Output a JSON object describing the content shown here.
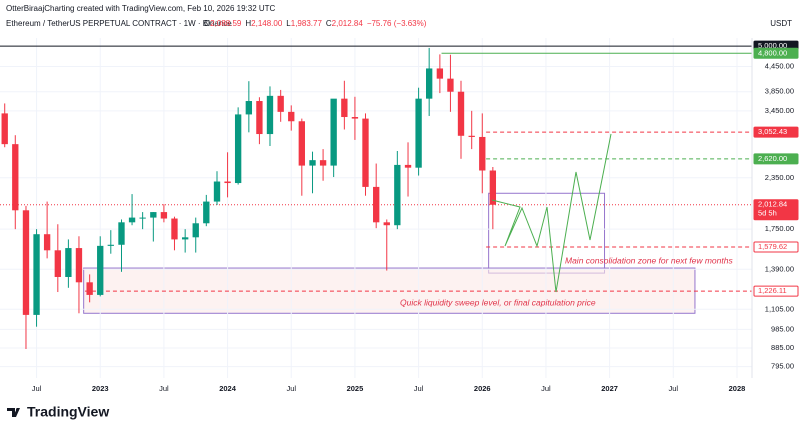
{
  "header": {
    "credit": "OtterBiraajCharting created with TradingView.com, Feb 10, 2026 19:32 UTC",
    "symbol": "Ethereum / TetherUS PERPETUAL CONTRACT · 1W · Binance",
    "ohlc": [
      {
        "key": "O",
        "value": "2,088.59"
      },
      {
        "key": "H",
        "value": "2,148.00"
      },
      {
        "key": "L",
        "value": "1,983.77"
      },
      {
        "key": "C",
        "value": "2,012.84"
      }
    ],
    "change": "−75.76 (−3.63%)",
    "currency": "USDT"
  },
  "footer": {
    "logo": "TradingView"
  },
  "chart_data": {
    "type": "candlestick",
    "log_scale": true,
    "up_color": "#089981",
    "down_color": "#f23645",
    "x": [
      2022.25,
      2022.333,
      2022.417,
      2022.5,
      2022.583,
      2022.667,
      2022.75,
      2022.833,
      2022.917,
      2023.0,
      2023.083,
      2023.167,
      2023.25,
      2023.333,
      2023.417,
      2023.5,
      2023.583,
      2023.667,
      2023.75,
      2023.833,
      2023.917,
      2024.0,
      2024.083,
      2024.167,
      2024.25,
      2024.333,
      2024.417,
      2024.5,
      2024.583,
      2024.667,
      2024.75,
      2024.833,
      2024.917,
      2025.0,
      2025.083,
      2025.167,
      2025.25,
      2025.333,
      2025.417,
      2025.5,
      2025.583,
      2025.667,
      2025.75,
      2025.833,
      2025.917,
      2026.0,
      2026.083
    ],
    "open": [
      3400,
      2850,
      1950,
      1070,
      1700,
      1550,
      1330,
      1570,
      1290,
      1200,
      1590,
      1600,
      1820,
      1870,
      1870,
      1930,
      1860,
      1650,
      1670,
      1810,
      2050,
      2300,
      2280,
      3380,
      3650,
      3020,
      3760,
      3430,
      3250,
      2520,
      2600,
      2520,
      3700,
      3330,
      3300,
      2230,
      1820,
      1790,
      2530,
      2490,
      3700,
      4400,
      4150,
      3850,
      2990,
      2970,
      2450
    ],
    "high": [
      3600,
      3000,
      2000,
      1750,
      2050,
      1800,
      1650,
      1680,
      1350,
      1680,
      1740,
      1850,
      2140,
      1930,
      1930,
      2020,
      1880,
      1750,
      1870,
      2130,
      2440,
      2720,
      3520,
      4090,
      3730,
      3970,
      3890,
      3560,
      3300,
      2730,
      2770,
      3680,
      4100,
      3740,
      3400,
      2550,
      1850,
      2740,
      2880,
      3940,
      4950,
      4770,
      4760,
      4100,
      3450,
      3400,
      2500
    ],
    "low": [
      2800,
      1750,
      880,
      1000,
      1480,
      1220,
      1250,
      1080,
      1150,
      1190,
      1520,
      1370,
      1790,
      1750,
      1630,
      1820,
      1550,
      1530,
      1530,
      1780,
      2010,
      2100,
      2260,
      3050,
      2850,
      2820,
      3240,
      3080,
      2120,
      2150,
      2310,
      2360,
      3100,
      2920,
      2120,
      1760,
      1380,
      1750,
      2110,
      2380,
      3350,
      3820,
      3430,
      2620,
      2770,
      2150,
      1750
    ],
    "close": [
      2850,
      1950,
      1070,
      1700,
      1550,
      1330,
      1570,
      1290,
      1200,
      1590,
      1600,
      1820,
      1870,
      1870,
      1930,
      1860,
      1650,
      1670,
      1810,
      2050,
      2300,
      2280,
      3380,
      3650,
      3020,
      3760,
      3430,
      3250,
      2520,
      2600,
      2520,
      3700,
      3330,
      3300,
      2230,
      1820,
      1790,
      2530,
      2490,
      3700,
      4400,
      4150,
      3850,
      2990,
      2970,
      2450,
      2012.84
    ],
    "xlim": [
      2022.213,
      2028.118
    ],
    "xticks": [
      {
        "value": 2022.5,
        "label": "Jul"
      },
      2023,
      {
        "value": 2023.5,
        "label": "Jul"
      },
      2024,
      {
        "value": 2024.5,
        "label": "Jul"
      },
      2025,
      {
        "value": 2025.5,
        "label": "Jul"
      },
      2026,
      {
        "value": 2026.5,
        "label": "Jul"
      },
      2027,
      {
        "value": 2027.5,
        "label": "Jul"
      },
      2028
    ],
    "ylim": [
      745,
      5240
    ],
    "yticks": [
      {
        "value": 4450,
        "label": "4,450.00"
      },
      {
        "value": 3850,
        "label": "3,850.00"
      },
      {
        "value": 3450,
        "label": "3,450.00"
      },
      {
        "value": 2350,
        "label": "2,350.00"
      },
      {
        "value": 1750,
        "label": "1,750.00"
      },
      {
        "value": 1390,
        "label": "1,390.00"
      },
      {
        "value": 1105,
        "label": "1,105.00"
      },
      {
        "value": 985,
        "label": "985.00"
      },
      {
        "value": 885,
        "label": "885.00"
      },
      {
        "value": 795,
        "label": "795.00"
      }
    ],
    "levels": [
      {
        "value": 5000,
        "label": "5,000.00",
        "color": "#131722",
        "style": "solid",
        "from": 2022.213
      },
      {
        "value": 4800,
        "label": "4,800.00",
        "color": "#4caf50",
        "style": "solid",
        "from": 2025.68
      },
      {
        "value": 3052.43,
        "label": "3,052.43",
        "color": "#f23645",
        "style": "dashed",
        "from": 2026.03
      },
      {
        "value": 2620,
        "label": "2,620.00",
        "color": "#4caf50",
        "style": "dashed",
        "from": 2026.03
      },
      {
        "value": 2012.84,
        "label": "2,012.84",
        "color": "#f23645",
        "style": "dotted",
        "from": 2022.213
      },
      {
        "value": 1579.62,
        "label": "1,579.62",
        "color": "#f23645",
        "style": "dashed",
        "from": 2026.03
      },
      {
        "value": 1226.11,
        "label": "1,226.11",
        "color": "#f23645",
        "style": "dashed",
        "from": 2022.88
      }
    ],
    "countdown": "5d 5h",
    "zones": [
      {
        "from": 2026.05,
        "to": 2026.96,
        "top": 2150,
        "bottom": 1360,
        "color": "#9575cd",
        "fill": "none",
        "label": "Main consolidation zone for next few months"
      },
      {
        "from": 2022.87,
        "to": 2027.67,
        "top": 1400,
        "bottom": 1080,
        "color": "#9575cd",
        "fill": "#fbe9e7",
        "label": "Quick liquidity sweep level, or final capitulation price"
      }
    ]
  }
}
